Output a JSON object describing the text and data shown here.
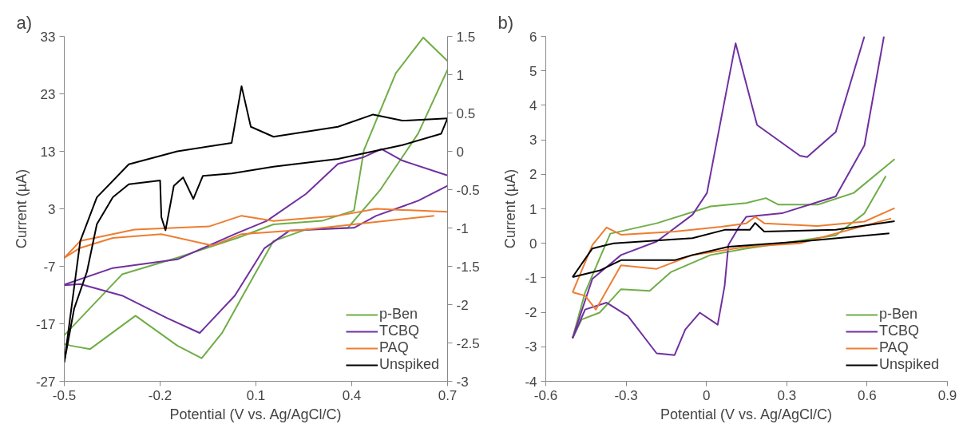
{
  "chart_data": [
    {
      "type": "line",
      "annotations": [
        "a)"
      ],
      "xlabel": "Potential (V vs. Ag/AgCl/C)",
      "ylabel": "Current (µA)",
      "xlim": [
        -0.5,
        0.7
      ],
      "xticks": [
        -0.5,
        -0.2,
        0.1,
        0.4,
        0.7
      ],
      "ylim": [
        -27,
        33
      ],
      "yticks": [
        -27,
        -17,
        -7,
        3,
        13,
        23,
        33
      ],
      "y2lim": [
        -3,
        1.5
      ],
      "y2ticks": [
        -3,
        -2.5,
        -2,
        -1.5,
        -1,
        -0.5,
        0,
        0.5,
        1,
        1.5
      ],
      "grid": false,
      "legend": "bottom right",
      "series": [
        {
          "name": "p-Ben",
          "color": "#70ad47",
          "x": [
            -0.5,
            -0.319,
            -0.146,
            0.045,
            0.155,
            0.307,
            0.407,
            0.438,
            0.538,
            0.624,
            0.7
          ],
          "values": [
            -19,
            -8.4,
            -5.5,
            -2,
            0.3,
            0.9,
            2.7,
            13.2,
            26.6,
            32.8,
            28.7
          ]
        },
        {
          "color": "#70ad47",
          "x": [
            0.7,
            0.608,
            0.488,
            0.388,
            0.257,
            0.155,
            0.055,
            -0.005,
            -0.07,
            -0.146,
            -0.277,
            -0.419,
            -0.48,
            -0.5
          ],
          "values": [
            27.2,
            16.1,
            6.2,
            -0.3,
            -0.6,
            -2.6,
            -12.5,
            -18.5,
            -23,
            -20.8,
            -15.6,
            -21.4,
            -20.8,
            -20.5
          ]
        },
        {
          "name": "TCBQ",
          "color": "#7030a0",
          "x": [
            -0.5,
            -0.348,
            -0.146,
            0.034,
            0.134,
            0.257,
            0.357,
            0.438,
            0.493,
            0.558,
            0.7
          ],
          "values": [
            -10.2,
            -7.3,
            -5.8,
            -1.4,
            0.9,
            5.6,
            10.8,
            12,
            13.4,
            11.4,
            8.8
          ]
        },
        {
          "color": "#7030a0",
          "x": [
            0.7,
            0.608,
            0.477,
            0.407,
            0.205,
            0.126,
            0.034,
            -0.076,
            -0.178,
            -0.319,
            -0.45,
            -0.5
          ],
          "values": [
            7,
            4.4,
            1.8,
            -0.3,
            -0.8,
            -3.9,
            -12.1,
            -18.6,
            -16,
            -12.1,
            -10.1,
            -10.3
          ]
        },
        {
          "name": "PAQ",
          "color": "#ed7d31",
          "axis": "y2",
          "x": [
            -0.5,
            -0.45,
            -0.28,
            -0.047,
            0.055,
            0.155,
            0.357,
            0.477,
            0.7
          ],
          "values": [
            -1.39,
            -1.17,
            -1.02,
            -0.98,
            -0.84,
            -0.91,
            -0.84,
            -0.75,
            -0.79
          ]
        },
        {
          "color": "#ed7d31",
          "axis": "y2",
          "x": [
            0.658,
            0.458,
            0.257,
            0.055,
            -0.036,
            -0.196,
            -0.348,
            -0.45,
            -0.5
          ],
          "values": [
            -0.84,
            -0.93,
            -1.02,
            -1.08,
            -1.23,
            -1.08,
            -1.13,
            -1.26,
            -1.39
          ]
        },
        {
          "name": "Unspiked",
          "color": "#000000",
          "axis": "y2",
          "x": [
            -0.5,
            -0.45,
            -0.398,
            -0.298,
            -0.146,
            0.024,
            0.055,
            0.084,
            0.155,
            0.357,
            0.467,
            0.558,
            0.7
          ],
          "values": [
            -2.75,
            -1.17,
            -0.6,
            -0.17,
            0.0,
            0.11,
            0.85,
            0.32,
            0.19,
            0.32,
            0.48,
            0.4,
            0.43
          ]
        },
        {
          "color": "#000000",
          "axis": "y2",
          "x": [
            0.7,
            0.68,
            0.558,
            0.357,
            0.155,
            0.024,
            -0.066,
            -0.096,
            -0.128,
            -0.157,
            -0.183,
            -0.196,
            -0.2,
            -0.298,
            -0.348,
            -0.398,
            -0.429,
            -0.469,
            -0.5
          ],
          "values": [
            0.43,
            0.23,
            0.08,
            -0.1,
            -0.2,
            -0.29,
            -0.32,
            -0.62,
            -0.34,
            -0.45,
            -1.03,
            -0.86,
            -0.38,
            -0.43,
            -0.6,
            -0.95,
            -1.57,
            -2.05,
            -2.75
          ]
        }
      ]
    },
    {
      "type": "line",
      "annotations": [
        "b)"
      ],
      "xlabel": "Potential (V vs. Ag/AgCl/C)",
      "ylabel": "Current (µA)",
      "xlim": [
        -0.6,
        0.9
      ],
      "xticks": [
        -0.6,
        -0.3,
        0,
        0.3,
        0.6,
        0.9
      ],
      "ylim": [
        -4,
        6
      ],
      "yticks": [
        -4,
        -3,
        -2,
        -1,
        0,
        1,
        2,
        3,
        4,
        5,
        6
      ],
      "grid": false,
      "legend": "bottom right",
      "series": [
        {
          "name": "p-Ben",
          "color": "#70ad47",
          "x": [
            -0.5,
            -0.453,
            -0.399,
            -0.359,
            -0.186,
            0.015,
            0.149,
            0.222,
            0.269,
            0.416,
            0.55,
            0.703
          ],
          "values": [
            -2.75,
            -1.42,
            -0.44,
            0.28,
            0.58,
            1.07,
            1.17,
            1.31,
            1.12,
            1.12,
            1.46,
            2.44
          ]
        },
        {
          "color": "#70ad47",
          "x": [
            0.67,
            0.59,
            0.483,
            0.149,
            0.015,
            -0.132,
            -0.212,
            -0.319,
            -0.399,
            -0.466,
            -0.5
          ],
          "values": [
            1.95,
            0.87,
            0.23,
            -0.15,
            -0.34,
            -0.83,
            -1.38,
            -1.33,
            -2.01,
            -2.21,
            -2.75
          ]
        },
        {
          "name": "TCBQ",
          "color": "#7030a0",
          "x": [
            -0.5,
            -0.426,
            -0.319,
            -0.186,
            -0.052,
            0.002,
            0.055,
            0.109,
            0.189,
            0.349,
            0.376,
            0.483,
            0.59
          ],
          "values": [
            -2.75,
            -1.03,
            -0.34,
            0.05,
            0.83,
            1.46,
            3.62,
            5.8,
            3.43,
            2.54,
            2.5,
            3.23,
            6
          ]
        },
        {
          "color": "#7030a0",
          "x": [
            0.663,
            0.59,
            0.483,
            0.282,
            0.149,
            0.122,
            0.082,
            0.068,
            0.042,
            -0.025,
            -0.079,
            -0.119,
            -0.186,
            -0.293,
            -0.373,
            -0.453,
            -0.5
          ],
          "values": [
            6,
            2.84,
            1.36,
            0.87,
            0.77,
            0.48,
            -0.05,
            -1.23,
            -2.36,
            -2.01,
            -2.5,
            -3.24,
            -3.19,
            -2.11,
            -1.72,
            -1.92,
            -2.75
          ]
        },
        {
          "name": "PAQ",
          "color": "#ed7d31",
          "x": [
            -0.5,
            -0.426,
            -0.373,
            -0.319,
            -0.119,
            0.055,
            0.149,
            0.182,
            0.216,
            0.416,
            0.59,
            0.703
          ],
          "values": [
            -1.42,
            -0.05,
            0.46,
            0.25,
            0.34,
            0.48,
            0.58,
            0.77,
            0.58,
            0.5,
            0.63,
            1.02
          ]
        },
        {
          "color": "#ed7d31",
          "x": [
            0.69,
            0.349,
            0.149,
            -0.052,
            -0.186,
            -0.319,
            -0.359,
            -0.413,
            -0.453,
            -0.5
          ],
          "values": [
            0.72,
            0.0,
            -0.1,
            -0.34,
            -0.74,
            -0.64,
            -1.18,
            -1.92,
            -1.52,
            -1.42
          ]
        },
        {
          "name": "Unspiked",
          "color": "#000000",
          "x": [
            -0.5,
            -0.426,
            -0.346,
            -0.052,
            0.068,
            0.162,
            0.182,
            0.216,
            0.483,
            0.703
          ],
          "values": [
            -0.98,
            -0.15,
            0.0,
            0.15,
            0.39,
            0.39,
            0.59,
            0.34,
            0.39,
            0.64
          ]
        },
        {
          "color": "#000000",
          "x": [
            0.683,
            0.349,
            0.082,
            -0.052,
            -0.119,
            -0.319,
            -0.399,
            -0.5
          ],
          "values": [
            0.29,
            0.05,
            -0.1,
            -0.34,
            -0.49,
            -0.49,
            -0.79,
            -0.98
          ]
        }
      ]
    }
  ]
}
